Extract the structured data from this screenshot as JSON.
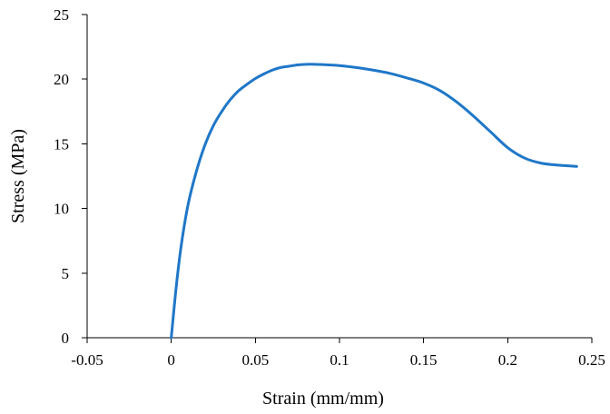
{
  "chart_data": {
    "type": "line",
    "title": "",
    "xlabel": "Strain (mm/mm)",
    "ylabel": "Stress (MPa)",
    "xlim": [
      -0.05,
      0.25
    ],
    "ylim": [
      0,
      25
    ],
    "xticks": [
      -0.05,
      0,
      0.05,
      0.1,
      0.15,
      0.2,
      0.25
    ],
    "xtick_labels": [
      "-0.05",
      "0",
      "0.05",
      "0.1",
      "0.15",
      "0.2",
      "0.25"
    ],
    "yticks": [
      0,
      5,
      10,
      15,
      20,
      25
    ],
    "ytick_labels": [
      "0",
      "5",
      "10",
      "15",
      "20",
      "25"
    ],
    "grid": false,
    "legend": "none",
    "series": [
      {
        "color": "#1f77c8",
        "x": [
          0.0,
          0.003,
          0.006,
          0.01,
          0.015,
          0.02,
          0.025,
          0.03,
          0.035,
          0.04,
          0.045,
          0.05,
          0.055,
          0.06,
          0.065,
          0.07,
          0.075,
          0.08,
          0.085,
          0.09,
          0.1,
          0.11,
          0.12,
          0.13,
          0.14,
          0.15,
          0.16,
          0.17,
          0.18,
          0.19,
          0.2,
          0.21,
          0.22,
          0.23,
          0.241
        ],
        "y": [
          0.0,
          4.0,
          7.2,
          10.3,
          12.9,
          14.9,
          16.4,
          17.5,
          18.4,
          19.1,
          19.6,
          20.05,
          20.4,
          20.7,
          20.9,
          21.0,
          21.1,
          21.15,
          21.15,
          21.13,
          21.05,
          20.9,
          20.7,
          20.45,
          20.1,
          19.7,
          19.1,
          18.2,
          17.1,
          15.9,
          14.7,
          13.9,
          13.5,
          13.35,
          13.25
        ]
      }
    ]
  }
}
